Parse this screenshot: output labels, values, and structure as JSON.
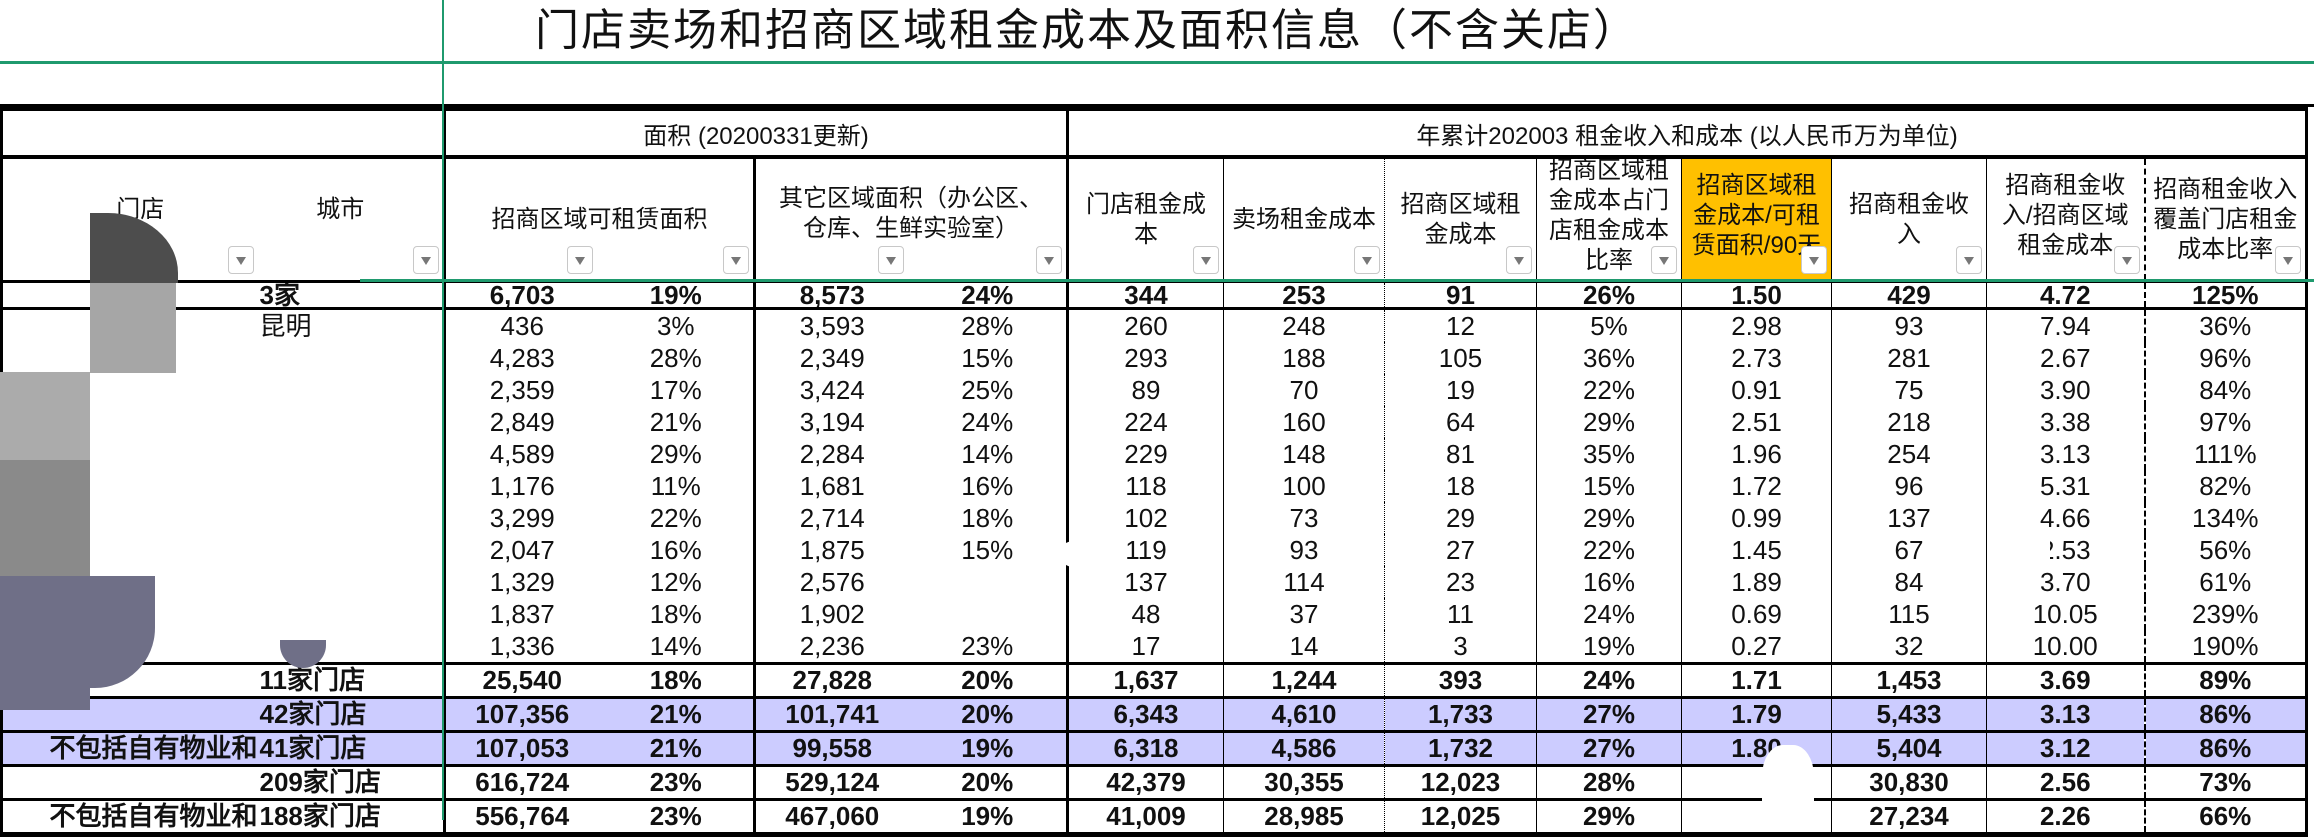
{
  "title": "门店卖场和招商区域租金成本及面积信息（不含关店）",
  "header": {
    "group_area": "面积 (20200331更新)",
    "group_rent": "年累计202003 租金收入和成本 (以人民币万为单位)",
    "store": "门店",
    "city": "城市",
    "leasable_area": "招商区域可租赁面积",
    "other_area": "其它区域面积（办公区、仓库、生鲜实验室）",
    "rent_cols": [
      "门店租金成本",
      "卖场租金成本",
      "招商区域租金成本",
      "招商区域租金成本占门店租金成本比率",
      "招商区域租金成本/可租赁面积/90天",
      "招商租金收入",
      "招商租金收入/招商区域租金成本",
      "招商租金收入覆盖门店租金成本比率"
    ],
    "filter_icon": "dropdown-filter-icon",
    "highlight_color": "#ffc000"
  },
  "rows": [
    {
      "store": "",
      "city": "3家",
      "v": [
        "6,703",
        "19%",
        "8,573",
        "24%",
        "344",
        "253",
        "91",
        "26%",
        "1.50",
        "429",
        "4.72",
        "125%"
      ]
    },
    {
      "store": "",
      "city": "昆明",
      "v": [
        "436",
        "3%",
        "3,593",
        "28%",
        "260",
        "248",
        "12",
        "5%",
        "2.98",
        "93",
        "7.94",
        "36%"
      ]
    },
    {
      "store": "",
      "city": "",
      "v": [
        "4,283",
        "28%",
        "2,349",
        "15%",
        "293",
        "188",
        "105",
        "36%",
        "2.73",
        "281",
        "2.67",
        "96%"
      ]
    },
    {
      "store": "",
      "city": "",
      "v": [
        "2,359",
        "17%",
        "3,424",
        "25%",
        "89",
        "70",
        "19",
        "22%",
        "0.91",
        "75",
        "3.90",
        "84%"
      ]
    },
    {
      "store": "",
      "city": "",
      "v": [
        "2,849",
        "21%",
        "3,194",
        "24%",
        "224",
        "160",
        "64",
        "29%",
        "2.51",
        "218",
        "3.38",
        "97%"
      ]
    },
    {
      "store": "",
      "city": "",
      "v": [
        "4,589",
        "29%",
        "2,284",
        "14%",
        "229",
        "148",
        "81",
        "35%",
        "1.96",
        "254",
        "3.13",
        "111%"
      ]
    },
    {
      "store": "",
      "city": "",
      "v": [
        "1,176",
        "11%",
        "1,681",
        "16%",
        "118",
        "100",
        "18",
        "15%",
        "1.72",
        "96",
        "5.31",
        "82%"
      ]
    },
    {
      "store": "",
      "city": "",
      "v": [
        "3,299",
        "22%",
        "2,714",
        "18%",
        "102",
        "73",
        "29",
        "29%",
        "0.99",
        "137",
        "4.66",
        "134%"
      ]
    },
    {
      "store": "",
      "city": "",
      "v": [
        "2,047",
        "16%",
        "1,875",
        "15%",
        "119",
        "93",
        "27",
        "22%",
        "1.45",
        "67",
        "2.53",
        "56%"
      ]
    },
    {
      "store": "",
      "city": "",
      "v": [
        "1,329",
        "12%",
        "2,576",
        "",
        "137",
        "114",
        "23",
        "16%",
        "1.89",
        "84",
        "3.70",
        "61%"
      ]
    },
    {
      "store": "",
      "city": "",
      "v": [
        "1,837",
        "18%",
        "1,902",
        "",
        "48",
        "37",
        "11",
        "24%",
        "0.69",
        "115",
        "10.05",
        "239%"
      ]
    },
    {
      "store": "",
      "city": "",
      "v": [
        "1,336",
        "14%",
        "2,236",
        "23%",
        "17",
        "14",
        "3",
        "19%",
        "0.27",
        "32",
        "10.00",
        "190%"
      ]
    }
  ],
  "summary": [
    {
      "store": "",
      "city": "11家门店",
      "highlight": false,
      "v": [
        "25,540",
        "18%",
        "27,828",
        "20%",
        "1,637",
        "1,244",
        "393",
        "24%",
        "1.71",
        "1,453",
        "3.69",
        "89%"
      ]
    },
    {
      "store": "",
      "city": "42家门店",
      "highlight": true,
      "v": [
        "107,356",
        "21%",
        "101,741",
        "20%",
        "6,343",
        "4,610",
        "1,733",
        "27%",
        "1.79",
        "5,433",
        "3.13",
        "86%"
      ]
    },
    {
      "store": "不包括自有物业和",
      "city": "41家门店",
      "highlight": true,
      "v": [
        "107,053",
        "21%",
        "99,558",
        "19%",
        "6,318",
        "4,586",
        "1,732",
        "27%",
        "1.80",
        "5,404",
        "3.12",
        "86%"
      ]
    },
    {
      "store": "",
      "city": "209家门店",
      "highlight": false,
      "v": [
        "616,724",
        "23%",
        "529,124",
        "20%",
        "42,379",
        "30,355",
        "12,023",
        "28%",
        "",
        "30,830",
        "2.56",
        "73%"
      ]
    },
    {
      "store": "不包括自有物业和",
      "city": "188家门店",
      "highlight": false,
      "v": [
        "556,764",
        "23%",
        "467,060",
        "19%",
        "41,009",
        "28,985",
        "12,025",
        "29%",
        "",
        "27,234",
        "2.26",
        "66%"
      ]
    }
  ],
  "colors": {
    "highlight_row": "#ccccff",
    "freeze_line": "#1f9a6e"
  }
}
